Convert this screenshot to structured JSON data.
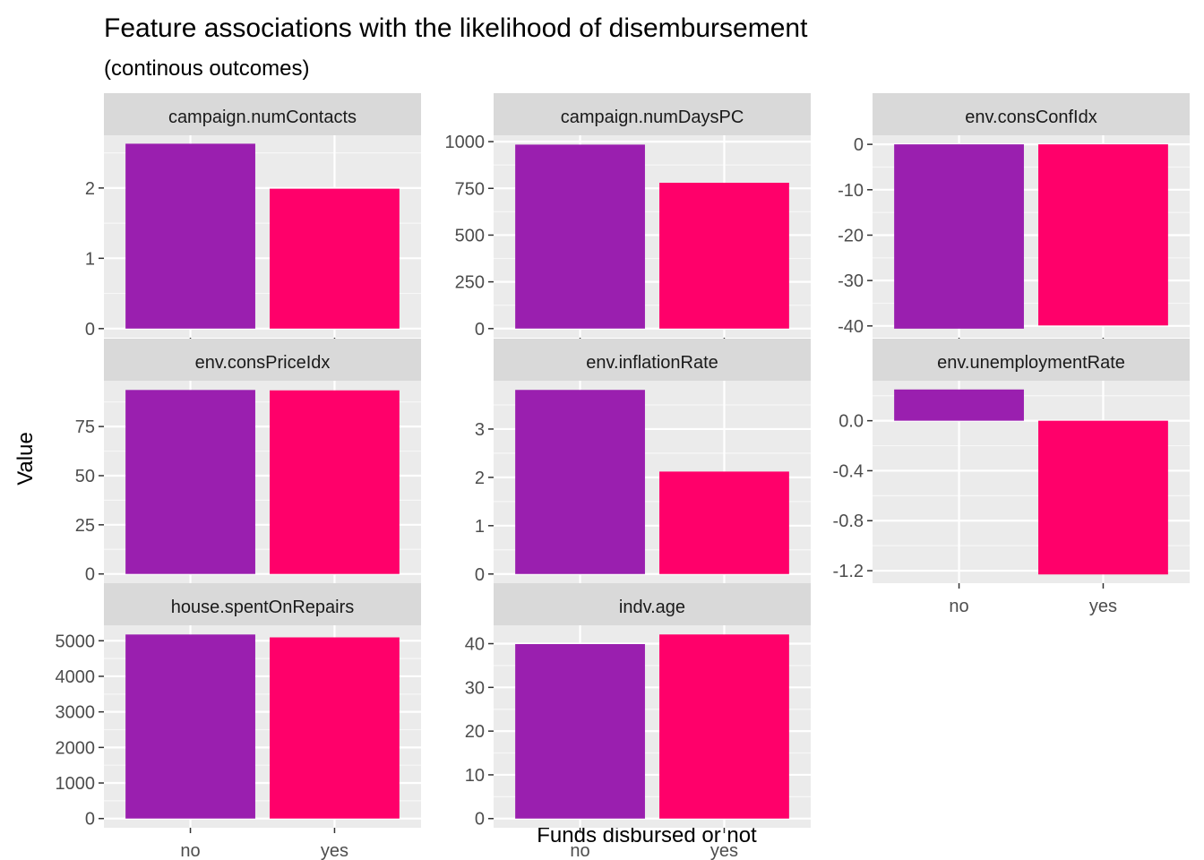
{
  "title": "Feature associations with the likelihood of disembursement",
  "subtitle": "(continous outcomes)",
  "xlabel": "Funds disbursed or not",
  "ylabel": "Value",
  "colors": {
    "no": "#9A1FAF",
    "yes": "#FF006A",
    "panel_bg": "#EBEBEB",
    "strip_bg": "#D9D9D9",
    "grid_major": "#FFFFFF",
    "axis_text": "#4D4D4D",
    "strip_text": "#1A1A1A"
  },
  "chart_data": {
    "type": "bar",
    "categories": [
      "no",
      "yes"
    ],
    "grid": true,
    "legend": "none",
    "facets": [
      {
        "name": "campaign.numContacts",
        "values": [
          2.63,
          1.99
        ],
        "ylim": [
          -0.13,
          2.75
        ],
        "ticks": [
          0,
          1,
          2
        ]
      },
      {
        "name": "campaign.numDaysPC",
        "values": [
          984,
          780
        ],
        "ylim": [
          -49,
          1034
        ],
        "ticks": [
          0,
          250,
          500,
          750,
          1000
        ]
      },
      {
        "name": "env.consConfIdx",
        "values": [
          -40.6,
          -39.9
        ],
        "ylim": [
          -42.6,
          2.0
        ],
        "ticks": [
          0,
          -10,
          -20,
          -30,
          -40
        ]
      },
      {
        "name": "env.consPriceIdx",
        "values": [
          93.6,
          93.4
        ],
        "ylim": [
          -4.7,
          98.3
        ],
        "ticks": [
          0,
          25,
          50,
          75
        ]
      },
      {
        "name": "env.inflationRate",
        "values": [
          3.81,
          2.12
        ],
        "ylim": [
          -0.19,
          4.0
        ],
        "ticks": [
          0,
          1,
          2,
          3
        ]
      },
      {
        "name": "env.unemploymentRate",
        "values": [
          0.25,
          -1.23
        ],
        "ylim": [
          -1.3,
          0.32
        ],
        "ticks": [
          0.0,
          -0.4,
          -0.8,
          -1.2
        ],
        "tick_labels": [
          "0.0",
          "-0.4",
          "-0.8",
          "-1.2"
        ]
      },
      {
        "name": "house.spentOnRepairs",
        "values": [
          5176,
          5095
        ],
        "ylim": [
          -259,
          5435
        ],
        "ticks": [
          0,
          1000,
          2000,
          3000,
          4000,
          5000
        ]
      },
      {
        "name": "indv.age",
        "values": [
          39.9,
          42.1
        ],
        "ylim": [
          -2.1,
          44.2
        ],
        "ticks": [
          0,
          10,
          20,
          30,
          40
        ]
      }
    ]
  }
}
